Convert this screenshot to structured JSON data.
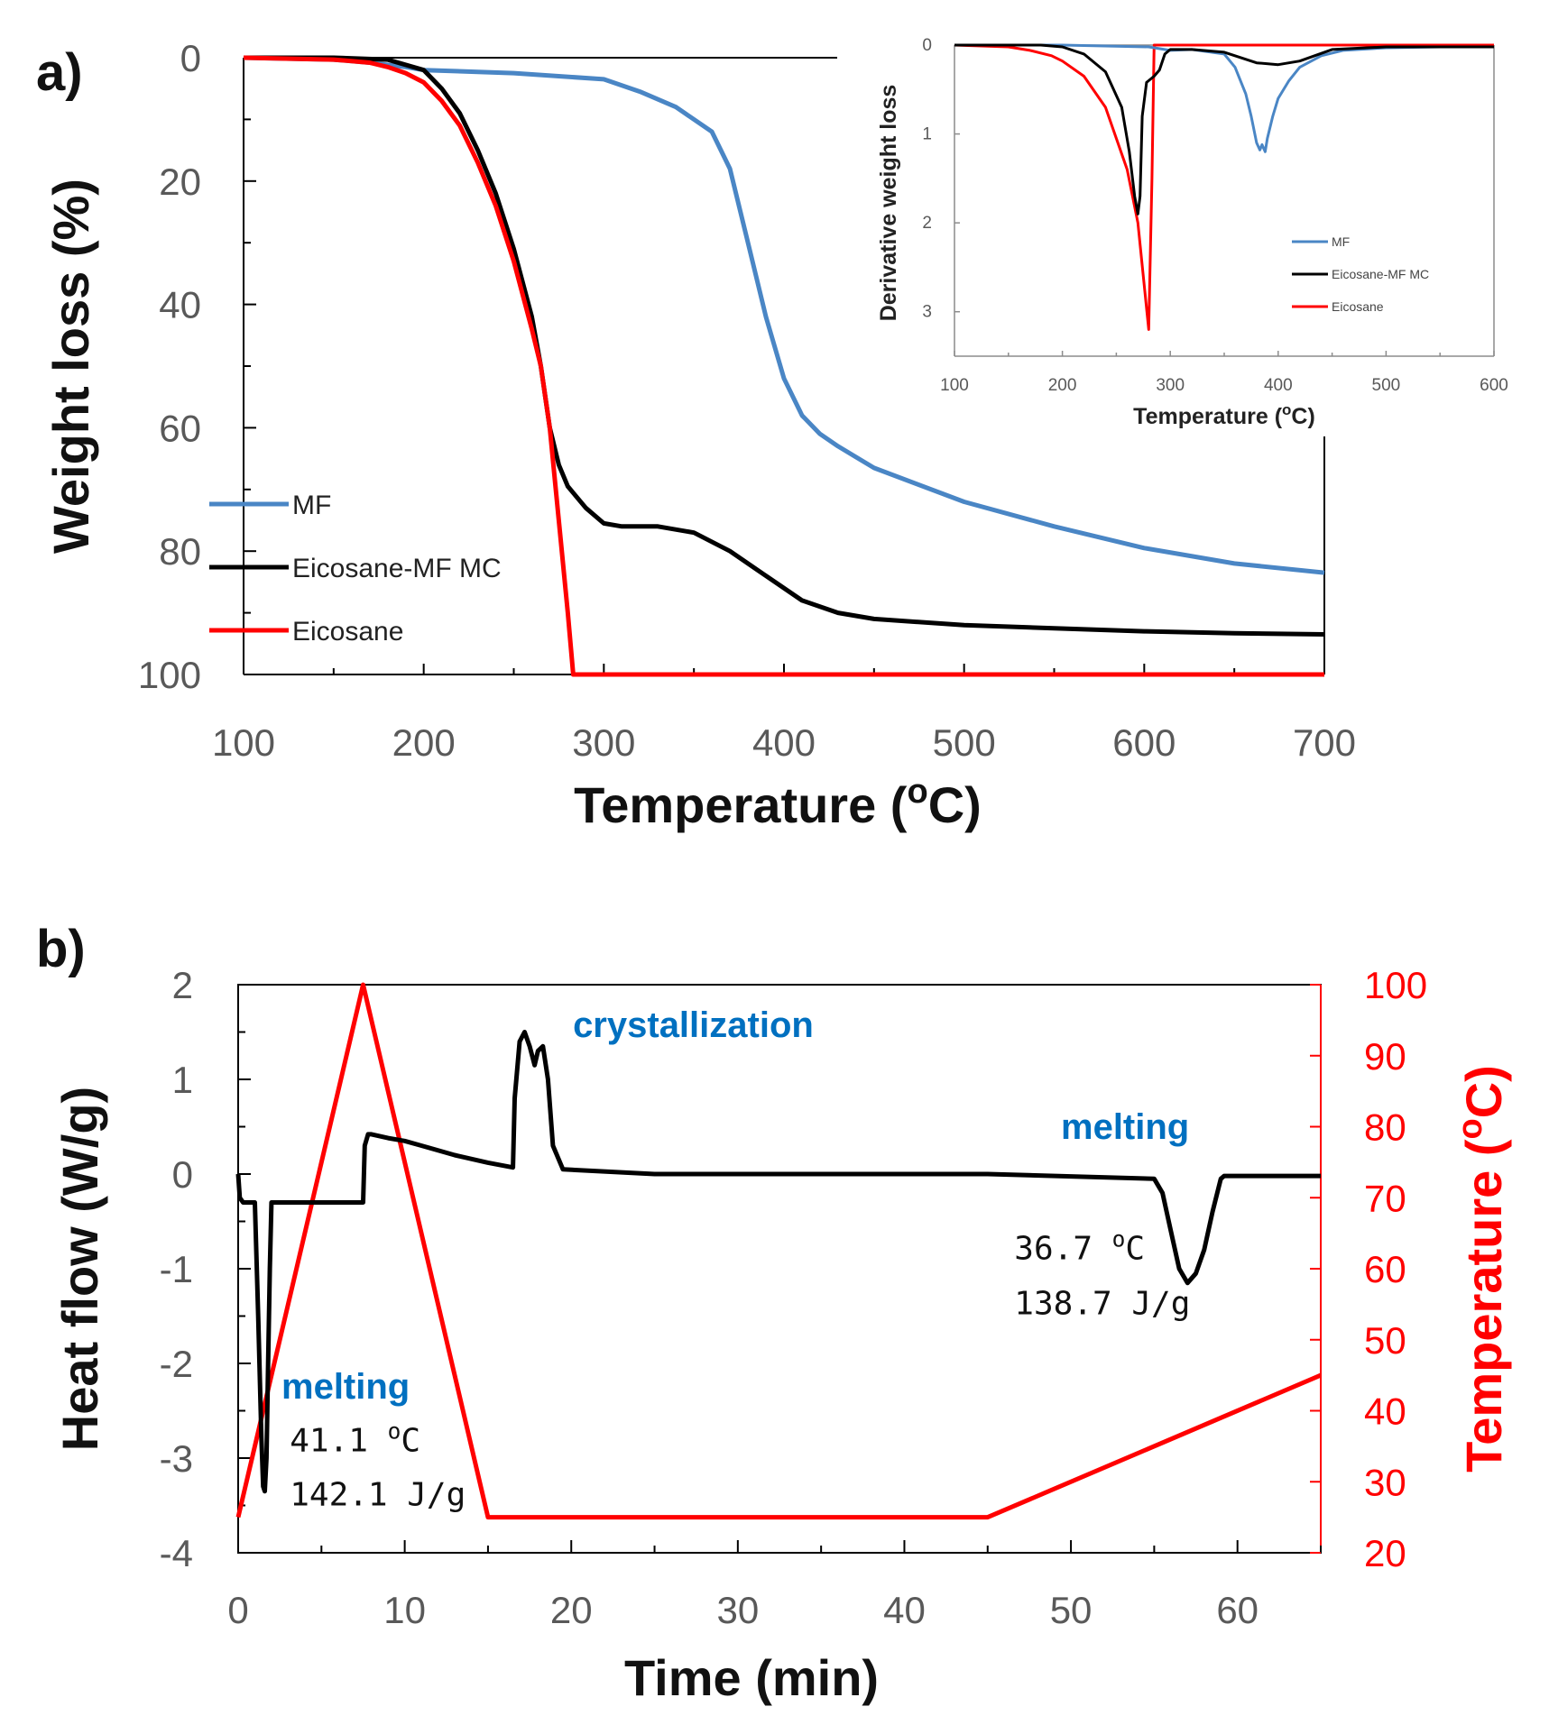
{
  "colors": {
    "mf": "#4a86c5",
    "composite": "#000000",
    "eicosane": "#ff0000",
    "annotation": "#0070c0"
  },
  "chart_data": [
    {
      "id": "a",
      "panel_label": "a)",
      "type": "line",
      "xlabel": "Temperature (",
      "xlabel_sup": "o",
      "xlabel_tail": "C)",
      "ylabel": "Weight loss (%)",
      "xlim": [
        100,
        700
      ],
      "ylim": [
        0,
        100
      ],
      "y_inverted": true,
      "x_ticks": [
        "100",
        "200",
        "300",
        "400",
        "500",
        "600",
        "700"
      ],
      "y_ticks": [
        "0",
        "20",
        "40",
        "60",
        "80",
        "100"
      ],
      "legend": [
        "MF",
        "Eicosane-MF MC",
        "Eicosane"
      ],
      "series": [
        {
          "name": "MF",
          "color": "#4a86c5",
          "x": [
            100,
            150,
            170,
            190,
            200,
            250,
            300,
            320,
            340,
            360,
            370,
            380,
            390,
            400,
            410,
            420,
            430,
            450,
            500,
            550,
            600,
            650,
            700
          ],
          "y": [
            0,
            0.3,
            0.8,
            1.5,
            2,
            2.5,
            3.5,
            5.5,
            8,
            12,
            18,
            30,
            42,
            52,
            58,
            61,
            63,
            66.5,
            72,
            76,
            79.5,
            82,
            83.5
          ]
        },
        {
          "name": "Eicosane-MF MC",
          "color": "#000000",
          "x": [
            100,
            150,
            180,
            200,
            210,
            220,
            230,
            240,
            250,
            260,
            265,
            270,
            275,
            280,
            290,
            300,
            310,
            330,
            350,
            370,
            390,
            410,
            430,
            450,
            500,
            550,
            600,
            650,
            700
          ],
          "y": [
            0,
            0,
            0.3,
            2,
            5,
            9,
            15,
            22,
            31,
            42,
            50,
            60,
            66,
            69.5,
            73,
            75.5,
            76,
            76,
            77,
            80,
            84,
            88,
            90,
            91,
            92,
            92.5,
            93,
            93.3,
            93.5
          ]
        },
        {
          "name": "Eicosane",
          "color": "#ff0000",
          "x": [
            100,
            150,
            170,
            180,
            190,
            200,
            210,
            220,
            230,
            240,
            250,
            260,
            265,
            270,
            275,
            280,
            283,
            290,
            350,
            400,
            500,
            600,
            700
          ],
          "y": [
            0,
            0.3,
            0.8,
            1.5,
            2.5,
            4,
            7,
            11,
            17,
            24,
            33,
            44,
            50,
            60,
            75,
            90,
            100,
            100,
            100,
            100,
            100,
            100,
            100
          ]
        }
      ]
    },
    {
      "id": "a-inset",
      "type": "line",
      "xlabel": "Temperature (",
      "xlabel_sup": "o",
      "xlabel_tail": "C)",
      "ylabel": "Derivative weight loss",
      "xlim": [
        100,
        600
      ],
      "ylim": [
        0,
        3.5
      ],
      "y_inverted": true,
      "x_ticks": [
        "100",
        "200",
        "300",
        "400",
        "500",
        "600"
      ],
      "y_ticks": [
        "0",
        "1",
        "2",
        "3"
      ],
      "legend": [
        "MF",
        "Eicosane-MF MC",
        "Eicosane"
      ],
      "series": [
        {
          "name": "MF",
          "color": "#4a86c5",
          "x": [
            100,
            200,
            280,
            300,
            320,
            350,
            360,
            370,
            375,
            380,
            383,
            385,
            388,
            390,
            395,
            400,
            410,
            420,
            440,
            460,
            500,
            550,
            600
          ],
          "y": [
            0,
            0,
            0.02,
            0.06,
            0.05,
            0.1,
            0.25,
            0.55,
            0.8,
            1.1,
            1.18,
            1.12,
            1.2,
            1.05,
            0.8,
            0.6,
            0.4,
            0.25,
            0.12,
            0.06,
            0.03,
            0.02,
            0.02
          ]
        },
        {
          "name": "Eicosane-MF MC",
          "color": "#000000",
          "x": [
            100,
            150,
            180,
            200,
            220,
            240,
            255,
            262,
            267,
            270,
            272,
            274,
            278,
            285,
            290,
            295,
            300,
            320,
            350,
            380,
            400,
            420,
            450,
            500,
            600
          ],
          "y": [
            0,
            0,
            0,
            0.02,
            0.1,
            0.3,
            0.7,
            1.2,
            1.7,
            1.9,
            1.7,
            0.8,
            0.42,
            0.35,
            0.28,
            0.1,
            0.05,
            0.05,
            0.08,
            0.2,
            0.22,
            0.18,
            0.05,
            0.02,
            0.02
          ]
        },
        {
          "name": "Eicosane",
          "color": "#ff0000",
          "x": [
            100,
            150,
            170,
            190,
            200,
            220,
            240,
            260,
            270,
            275,
            280,
            283,
            285,
            300,
            350,
            400,
            500,
            600
          ],
          "y": [
            0,
            0.02,
            0.06,
            0.12,
            0.18,
            0.35,
            0.7,
            1.4,
            2.0,
            2.6,
            3.2,
            1.5,
            0,
            0,
            0,
            0,
            0,
            0
          ]
        }
      ]
    },
    {
      "id": "b",
      "panel_label": "b)",
      "type": "line",
      "xlabel": "Time (min)",
      "ylabel": "Heat flow (W/g)",
      "y2label": "Temperature (",
      "y2label_sup": "o",
      "y2label_tail": "C)",
      "xlim": [
        0,
        65
      ],
      "ylim": [
        -4,
        2
      ],
      "y2lim": [
        20,
        100
      ],
      "x_ticks": [
        "0",
        "10",
        "20",
        "30",
        "40",
        "50",
        "60"
      ],
      "y_ticks": [
        "2",
        "1",
        "0",
        "-1",
        "-2",
        "-3",
        "-4"
      ],
      "y2_ticks": [
        "100",
        "90",
        "80",
        "70",
        "60",
        "50",
        "40",
        "30",
        "20"
      ],
      "series": [
        {
          "name": "Heat flow",
          "axis": "left",
          "color": "#000000",
          "x": [
            0,
            0.1,
            0.3,
            1.0,
            1.2,
            1.4,
            1.5,
            1.6,
            1.7,
            1.8,
            1.9,
            2.0,
            2.2,
            2.5,
            7.5,
            7.6,
            7.8,
            8,
            9,
            10,
            11,
            13,
            15,
            16.5,
            16.6,
            16.9,
            17.2,
            17.5,
            17.8,
            18.0,
            18.3,
            18.6,
            18.9,
            19.5,
            25,
            30,
            45,
            55,
            55.5,
            56,
            56.5,
            57,
            57.5,
            58,
            58.5,
            59,
            59.2,
            65
          ],
          "y": [
            0,
            -0.25,
            -0.3,
            -0.3,
            -1.5,
            -2.8,
            -3.3,
            -3.35,
            -3.0,
            -2.0,
            -1.0,
            -0.3,
            -0.3,
            -0.3,
            -0.3,
            0.3,
            0.42,
            0.42,
            0.38,
            0.35,
            0.3,
            0.2,
            0.12,
            0.07,
            0.8,
            1.4,
            1.5,
            1.35,
            1.15,
            1.3,
            1.35,
            1.0,
            0.3,
            0.05,
            0.0,
            0.0,
            0.0,
            -0.05,
            -0.2,
            -0.6,
            -1.0,
            -1.15,
            -1.05,
            -0.8,
            -0.4,
            -0.05,
            -0.02,
            -0.02
          ]
        },
        {
          "name": "Temperature",
          "axis": "right",
          "color": "#ff0000",
          "x": [
            0,
            7.5,
            15,
            45,
            65
          ],
          "y": [
            25,
            100,
            25,
            25,
            45
          ]
        }
      ],
      "annotations": [
        {
          "id": "crystallization",
          "text": "crystallization",
          "x": 20.1,
          "y": 1.45,
          "style": "blue"
        },
        {
          "id": "melting2",
          "text": "melting",
          "x": 49.4,
          "y": 0.37,
          "style": "blue"
        },
        {
          "id": "melting2-temp",
          "text": "36.7 ",
          "sup": "o",
          "tail": "C",
          "x": 46.6,
          "y": -0.9,
          "style": "plain"
        },
        {
          "id": "melting2-enthalpy",
          "text": "138.7 J/g",
          "x": 46.6,
          "y": -1.48,
          "style": "plain"
        },
        {
          "id": "melting1",
          "text": "melting",
          "x": 2.6,
          "y": -2.37,
          "style": "blue"
        },
        {
          "id": "melting1-temp",
          "text": "41.1 ",
          "sup": "o",
          "tail": "C",
          "x": 3.1,
          "y": -2.93,
          "style": "plain"
        },
        {
          "id": "melting1-enthalpy",
          "text": "142.1 J/g",
          "x": 3.1,
          "y": -3.5,
          "style": "plain"
        }
      ]
    }
  ]
}
